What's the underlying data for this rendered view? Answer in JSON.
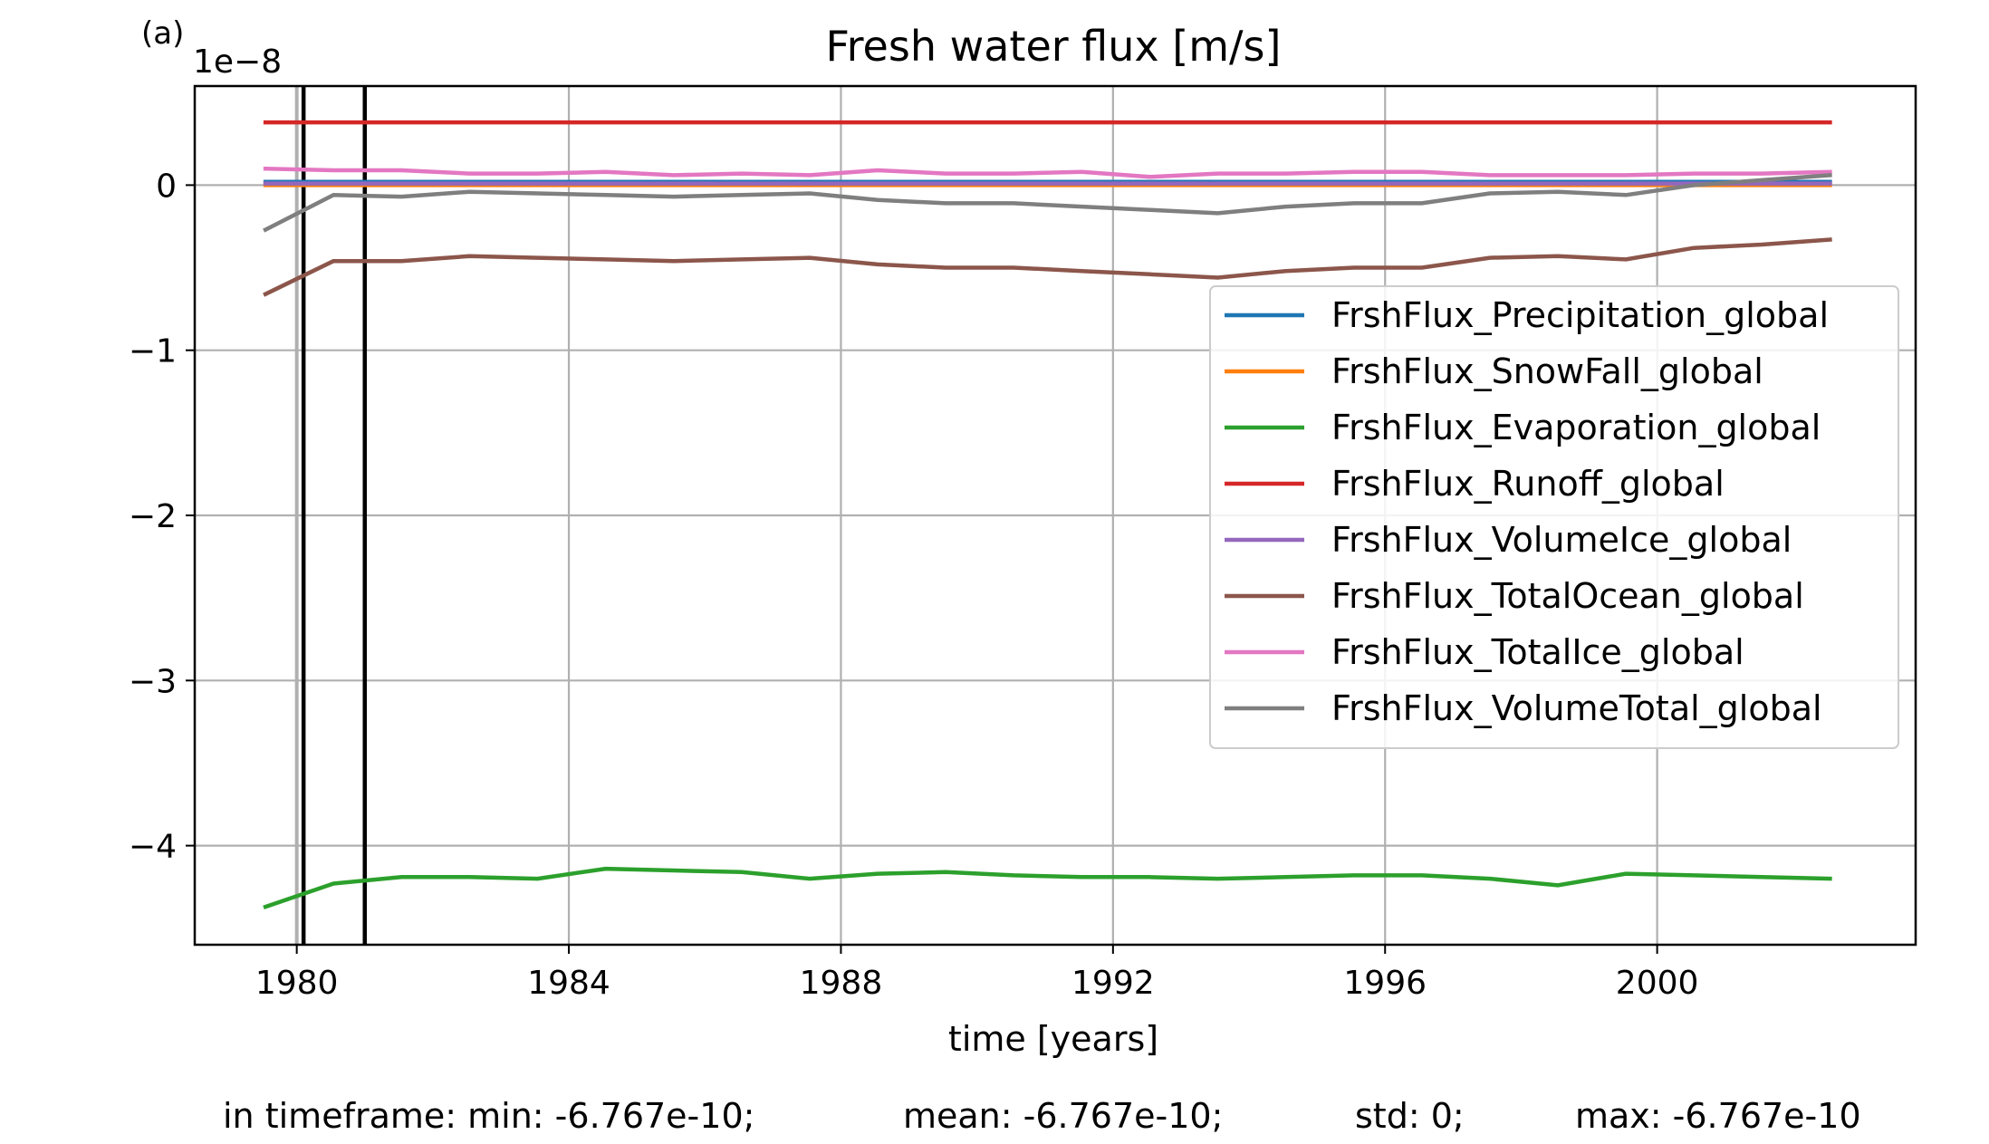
{
  "panel_label": "(a)",
  "chart_data": {
    "type": "line",
    "title": "Fresh water flux [m/s]",
    "xlabel": "time [years]",
    "ylabel": "",
    "y_offset_text": "1e−8",
    "xlim": [
      1978.5,
      2003.8
    ],
    "ylim": [
      -4.6,
      0.6
    ],
    "xticks": [
      1980,
      1984,
      1988,
      1992,
      1996,
      2000
    ],
    "yticks": [
      -4,
      -3,
      -2,
      -1,
      0
    ],
    "ytick_labels": [
      "−4",
      "−3",
      "−2",
      "−1",
      "0"
    ],
    "grid": true,
    "legend_position": "center-right",
    "vertical_lines": [
      {
        "x": 1980.0,
        "color": "#b0b0b0"
      },
      {
        "x": 1980.1,
        "color": "#000000"
      },
      {
        "x": 1981.0,
        "color": "#000000"
      }
    ],
    "x": [
      1979.54,
      1980.54,
      1981.54,
      1982.54,
      1983.54,
      1984.54,
      1985.54,
      1986.54,
      1987.54,
      1988.54,
      1989.54,
      1990.54,
      1991.54,
      1992.54,
      1993.54,
      1994.54,
      1995.54,
      1996.54,
      1997.54,
      1998.54,
      1999.54,
      2000.54,
      2001.54,
      2002.54
    ],
    "series": [
      {
        "name": "FrshFlux_Precipitation_global",
        "color": "#1f77b4",
        "values": [
          0.02,
          0.02,
          0.02,
          0.02,
          0.02,
          0.02,
          0.02,
          0.02,
          0.02,
          0.02,
          0.02,
          0.02,
          0.02,
          0.02,
          0.02,
          0.02,
          0.02,
          0.02,
          0.02,
          0.02,
          0.02,
          0.02,
          0.02,
          0.02
        ]
      },
      {
        "name": "FrshFlux_SnowFall_global",
        "color": "#ff7f0e",
        "values": [
          0.0,
          0.0,
          0.0,
          0.0,
          0.0,
          0.0,
          0.0,
          0.0,
          0.0,
          0.0,
          0.0,
          0.0,
          0.0,
          0.0,
          0.0,
          0.0,
          0.0,
          0.0,
          0.0,
          0.0,
          0.0,
          0.0,
          0.0,
          0.0
        ]
      },
      {
        "name": "FrshFlux_Evaporation_global",
        "color": "#2ca02c",
        "values": [
          -4.37,
          -4.23,
          -4.19,
          -4.19,
          -4.2,
          -4.14,
          -4.15,
          -4.16,
          -4.2,
          -4.17,
          -4.16,
          -4.18,
          -4.19,
          -4.19,
          -4.2,
          -4.19,
          -4.18,
          -4.18,
          -4.2,
          -4.24,
          -4.17,
          -4.18,
          -4.19,
          -4.2
        ]
      },
      {
        "name": "FrshFlux_Runoff_global",
        "color": "#d62728",
        "values": [
          0.38,
          0.38,
          0.38,
          0.38,
          0.38,
          0.38,
          0.38,
          0.38,
          0.38,
          0.38,
          0.38,
          0.38,
          0.38,
          0.38,
          0.38,
          0.38,
          0.38,
          0.38,
          0.38,
          0.38,
          0.38,
          0.38,
          0.38,
          0.38
        ]
      },
      {
        "name": "FrshFlux_VolumeIce_global",
        "color": "#9467bd",
        "values": [
          0.01,
          0.01,
          0.01,
          0.01,
          0.01,
          0.01,
          0.01,
          0.01,
          0.01,
          0.01,
          0.01,
          0.01,
          0.01,
          0.01,
          0.01,
          0.01,
          0.01,
          0.01,
          0.01,
          0.01,
          0.01,
          0.01,
          0.01,
          0.01
        ]
      },
      {
        "name": "FrshFlux_TotalOcean_global",
        "color": "#8c564b",
        "values": [
          -0.66,
          -0.46,
          -0.46,
          -0.43,
          -0.44,
          -0.45,
          -0.46,
          -0.45,
          -0.44,
          -0.48,
          -0.5,
          -0.5,
          -0.52,
          -0.54,
          -0.56,
          -0.52,
          -0.5,
          -0.5,
          -0.44,
          -0.43,
          -0.45,
          -0.38,
          -0.36,
          -0.33
        ]
      },
      {
        "name": "FrshFlux_TotalIce_global",
        "color": "#e377c2",
        "values": [
          0.1,
          0.09,
          0.09,
          0.07,
          0.07,
          0.08,
          0.06,
          0.07,
          0.06,
          0.09,
          0.07,
          0.07,
          0.08,
          0.05,
          0.07,
          0.07,
          0.08,
          0.08,
          0.06,
          0.06,
          0.06,
          0.07,
          0.07,
          0.08
        ]
      },
      {
        "name": "FrshFlux_VolumeTotal_global",
        "color": "#7f7f7f",
        "values": [
          -0.27,
          -0.06,
          -0.07,
          -0.04,
          -0.05,
          -0.06,
          -0.07,
          -0.06,
          -0.05,
          -0.09,
          -0.11,
          -0.11,
          -0.13,
          -0.15,
          -0.17,
          -0.13,
          -0.11,
          -0.11,
          -0.05,
          -0.04,
          -0.06,
          0.0,
          0.03,
          0.06
        ]
      }
    ]
  },
  "stats": {
    "min": "in timeframe: min: -6.767e-10;",
    "mean": "mean: -6.767e-10;",
    "std": "std: 0;",
    "max": "max: -6.767e-10"
  }
}
